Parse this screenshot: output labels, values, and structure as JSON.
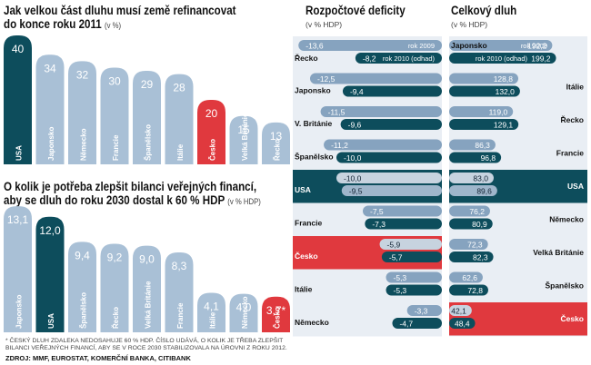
{
  "colors": {
    "default": "#a9c0d6",
    "highlight_usa": "#0d4d5c",
    "highlight_cz": "#e0393e",
    "panel_bg": "#e9eef4",
    "pill": "#86a3bf",
    "pill_dark": "#0d4d5c"
  },
  "chart1": {
    "title_line1": "Jak velkou část dluhu musí země refinancovat",
    "title_line2": "do konce roku 2011",
    "unit": "(v %)"
  },
  "chart2": {
    "title_line1": "O kolik je potřeba zlepšit bilanci veřejných financí,",
    "title_line2": "aby se dluh do roku 2030 dostal k 60 % HDP",
    "unit": "(v % HDP)"
  },
  "panel1": {
    "title": "Rozpočtové deficity",
    "unit": "(v % HDP)"
  },
  "panel2": {
    "title": "Celkový dluh",
    "unit": "(v % HDP)"
  },
  "footnote_line1": "* ČESKÝ DLUH ZDALEKA NEDOSAHUJE 60 % HDP. ČÍSLO UDÁVÁ, O KOLIK JE TŘEBA ZLEPŠIT",
  "footnote_line2": "BILANCI VEŘEJNÝCH FINANCÍ, ABY SE V ROCE 2030 STABILIZOVALA NA ÚROVNI Z ROKU 2012.",
  "source": "ZDROJ: MMF, EUROSTAT, KOMERČNÍ BANKA, CITIBANK",
  "chart_data": [
    {
      "type": "bar",
      "title": "Jak velkou část dluhu musí země refinancovat do konce roku 2011",
      "unit": "(v %)",
      "categories": [
        "USA",
        "Japonsko",
        "Německo",
        "Francie",
        "Španělsko",
        "Itálie",
        "Česko",
        "Velká Británie",
        "Řecko"
      ],
      "values": [
        40,
        34,
        32,
        30,
        29,
        28,
        20,
        15,
        13
      ],
      "labels": [
        "40",
        "34",
        "32",
        "30",
        "29",
        "28",
        "20",
        "15",
        "13"
      ],
      "highlight": {
        "USA": "usa",
        "Česko": "cz"
      }
    },
    {
      "type": "bar",
      "title": "O kolik je potřeba zlepšit bilanci veřejných financí, aby se dluh do roku 2030 dostal k 60 % HDP",
      "unit": "(v % HDP)",
      "categories": [
        "Japonsko",
        "USA",
        "Španělsko",
        "Řecko",
        "Velká Británie",
        "Francie",
        "Itálie",
        "Německo",
        "Česko"
      ],
      "values": [
        13.1,
        12.0,
        9.4,
        9.2,
        9.0,
        8.3,
        4.1,
        4.0,
        3.7
      ],
      "labels": [
        "13,1",
        "12,0",
        "9,4",
        "9,2",
        "9,0",
        "8,3",
        "4,1",
        "4,0",
        "3,7*"
      ],
      "highlight": {
        "USA": "usa",
        "Česko": "cz"
      }
    },
    {
      "type": "bar",
      "title": "Rozpočtové deficity",
      "unit": "(v % HDP)",
      "legend": [
        "rok 2009",
        "rok 2010 (odhad)"
      ],
      "categories": [
        "Řecko",
        "Japonsko",
        "V. Británie",
        "Španělsko",
        "USA",
        "Francie",
        "Česko",
        "Itálie",
        "Německo"
      ],
      "series": [
        {
          "name": "rok 2009",
          "values": [
            -13.6,
            -12.5,
            -11.5,
            -11.2,
            -10.0,
            -7.5,
            -5.9,
            -5.3,
            -3.3
          ],
          "labels": [
            "-13,6",
            "-12,5",
            "-11,5",
            "-11,2",
            "-10,0",
            "-7,5",
            "-5,9",
            "-5,3",
            "-3,3"
          ]
        },
        {
          "name": "rok 2010 (odhad)",
          "values": [
            -8.2,
            -9.4,
            -9.6,
            -10.0,
            -9.5,
            -7.3,
            -5.7,
            -5.3,
            -4.7
          ],
          "labels": [
            "-8,2",
            "-9,4",
            "-9,6",
            "-10,0",
            "-9,5",
            "-7,3",
            "-5,7",
            "-5,3",
            "-4,7"
          ]
        }
      ],
      "highlight": {
        "USA": "usa",
        "Česko": "cz"
      }
    },
    {
      "type": "bar",
      "title": "Celkový dluh",
      "unit": "(v % HDP)",
      "legend": [
        "rok 2009",
        "rok 2010 (odhad)"
      ],
      "categories": [
        "Japonsko",
        "Itálie",
        "Řecko",
        "Francie",
        "USA",
        "Německo",
        "Velká Británie",
        "Španělsko",
        "Česko"
      ],
      "series": [
        {
          "name": "rok 2009",
          "values": [
            192.2,
            128.8,
            119.0,
            86.3,
            83.0,
            76.2,
            72.3,
            62.6,
            42.1
          ],
          "labels": [
            "192,2",
            "128,8",
            "119,0",
            "86,3",
            "83,0",
            "76,2",
            "72,3",
            "62,6",
            "42,1"
          ]
        },
        {
          "name": "rok 2010 (odhad)",
          "values": [
            199.2,
            132.0,
            129.1,
            96.8,
            89.6,
            80.9,
            82.3,
            72.8,
            48.4
          ],
          "labels": [
            "199,2",
            "132,0",
            "129,1",
            "96,8",
            "89,6",
            "80,9",
            "82,3",
            "72,8",
            "48,4"
          ]
        }
      ],
      "highlight": {
        "USA": "usa",
        "Česko": "cz"
      }
    }
  ]
}
